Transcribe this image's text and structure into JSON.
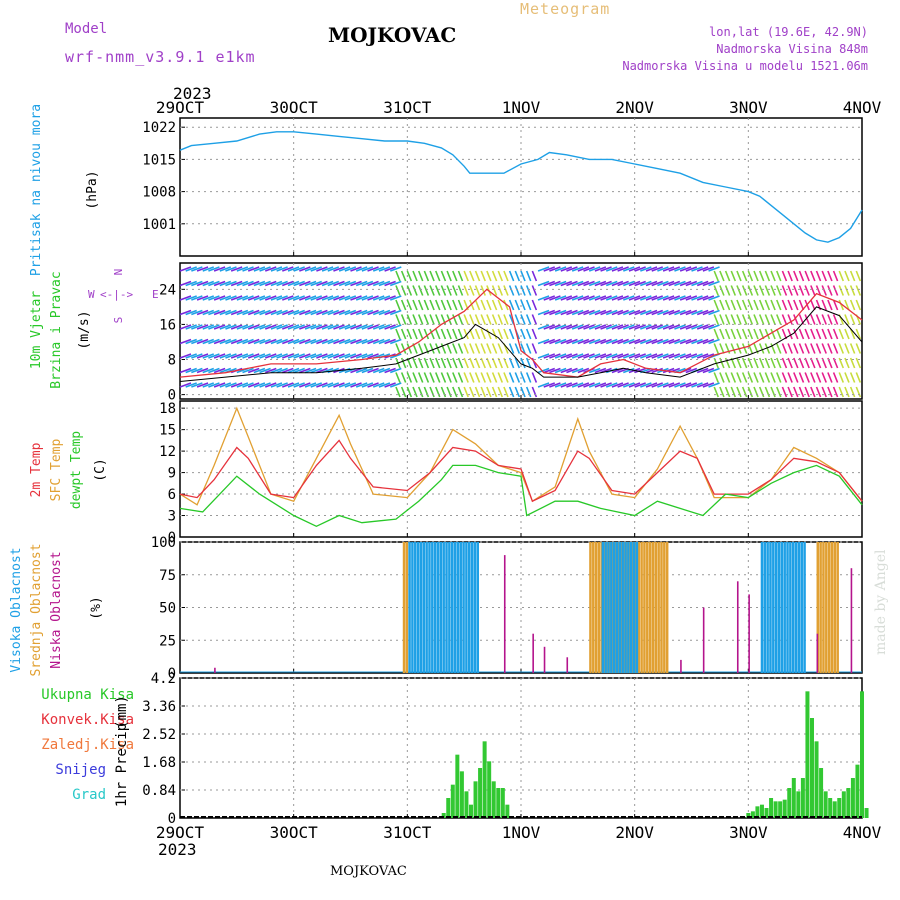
{
  "header": {
    "model_label": "Model",
    "model_name": "wrf-nmm_v3.9.1 e1km",
    "station": "MOJKOVAC",
    "product": "Meteogram",
    "lonlat": "lon,lat (19.6E, 42.9N)",
    "altitude": "Nadmorska Visina 848m",
    "model_altitude": "Nadmorska Visina u modelu 1521.06m",
    "year": "2023"
  },
  "footer": {
    "station": "MOJKOVAC",
    "year": "2023",
    "credit": "made by Angel"
  },
  "colors": {
    "pressure": "#1ea0e6",
    "wind_avg": "#000000",
    "wind_gust": "#e6323c",
    "t2m": "#e6323c",
    "sfc": "#e1a032",
    "dew": "#28c828",
    "cloud_high": "#1ea0e6",
    "cloud_mid": "#e1a032",
    "cloud_low": "#b4148c",
    "precip": "#32c832",
    "grid": "#888888"
  },
  "chart_data": [
    {
      "type": "line",
      "name": "pressure",
      "ylabel_main": "Pritisak na nivou mora",
      "ylabel_unit": "(hPa)",
      "yticks": [
        "1022",
        "1015",
        "1008",
        "1001"
      ],
      "ylim": [
        994,
        1024
      ],
      "x_days": [
        0,
        1,
        2,
        3,
        4,
        5,
        6
      ],
      "x_labels": [
        "29OCT",
        "30OCT",
        "31OCT",
        "1NOV",
        "2NOV",
        "3NOV",
        "4NOV"
      ],
      "points": [
        [
          0,
          1017
        ],
        [
          0.1,
          1018
        ],
        [
          0.3,
          1018.5
        ],
        [
          0.5,
          1019
        ],
        [
          0.7,
          1020.5
        ],
        [
          0.85,
          1021
        ],
        [
          1.0,
          1021
        ],
        [
          1.2,
          1020.5
        ],
        [
          1.4,
          1020
        ],
        [
          1.6,
          1019.5
        ],
        [
          1.8,
          1019
        ],
        [
          2.0,
          1019
        ],
        [
          2.15,
          1018.5
        ],
        [
          2.3,
          1017.5
        ],
        [
          2.4,
          1016
        ],
        [
          2.5,
          1013.5
        ],
        [
          2.55,
          1012
        ],
        [
          2.7,
          1012
        ],
        [
          2.85,
          1012
        ],
        [
          3.0,
          1014
        ],
        [
          3.15,
          1015
        ],
        [
          3.25,
          1016.5
        ],
        [
          3.4,
          1016
        ],
        [
          3.6,
          1015
        ],
        [
          3.8,
          1015
        ],
        [
          4.0,
          1014
        ],
        [
          4.2,
          1013
        ],
        [
          4.4,
          1012
        ],
        [
          4.6,
          1010
        ],
        [
          4.8,
          1009
        ],
        [
          5.0,
          1008
        ],
        [
          5.1,
          1007
        ],
        [
          5.2,
          1005
        ],
        [
          5.3,
          1003
        ],
        [
          5.4,
          1001
        ],
        [
          5.5,
          999
        ],
        [
          5.6,
          997.5
        ],
        [
          5.7,
          997
        ],
        [
          5.8,
          998
        ],
        [
          5.9,
          1000
        ],
        [
          6.0,
          1004
        ]
      ]
    },
    {
      "type": "line",
      "name": "wind",
      "ylabel_main": "10m Vjetar",
      "ylabel_sub": "Brzina i Pravac",
      "ylabel_unit": "(m/s)",
      "yticks": [
        "24",
        "16",
        "8",
        "0"
      ],
      "ylim": [
        -1,
        30
      ],
      "compass": {
        "north": "N",
        "west": "W",
        "south": "S",
        "east": "E",
        "arrows": "<-|->"
      },
      "series": [
        {
          "label": "average",
          "points": [
            [
              0,
              3
            ],
            [
              0.4,
              4
            ],
            [
              0.8,
              5
            ],
            [
              1.2,
              5
            ],
            [
              1.6,
              6
            ],
            [
              1.9,
              7
            ],
            [
              2.1,
              9
            ],
            [
              2.3,
              11
            ],
            [
              2.5,
              13
            ],
            [
              2.6,
              16
            ],
            [
              2.8,
              13
            ],
            [
              3.0,
              7
            ],
            [
              3.1,
              6
            ],
            [
              3.2,
              4
            ],
            [
              3.5,
              4
            ],
            [
              3.7,
              5
            ],
            [
              3.9,
              6
            ],
            [
              4.1,
              5
            ],
            [
              4.4,
              4
            ],
            [
              4.7,
              7
            ],
            [
              5.0,
              9
            ],
            [
              5.2,
              11
            ],
            [
              5.4,
              14
            ],
            [
              5.6,
              20
            ],
            [
              5.8,
              18
            ],
            [
              6.0,
              12
            ]
          ]
        },
        {
          "label": "gust",
          "points": [
            [
              0,
              4
            ],
            [
              0.4,
              5
            ],
            [
              0.8,
              7
            ],
            [
              1.2,
              7
            ],
            [
              1.6,
              8
            ],
            [
              1.9,
              9
            ],
            [
              2.1,
              12
            ],
            [
              2.3,
              16
            ],
            [
              2.5,
              19
            ],
            [
              2.7,
              24
            ],
            [
              2.9,
              20
            ],
            [
              3.0,
              10
            ],
            [
              3.1,
              8
            ],
            [
              3.2,
              5
            ],
            [
              3.5,
              4
            ],
            [
              3.7,
              7
            ],
            [
              3.9,
              8
            ],
            [
              4.1,
              6
            ],
            [
              4.4,
              5
            ],
            [
              4.7,
              9
            ],
            [
              5.0,
              11
            ],
            [
              5.2,
              14
            ],
            [
              5.4,
              17
            ],
            [
              5.6,
              23
            ],
            [
              5.8,
              21
            ],
            [
              6.0,
              17
            ]
          ]
        }
      ]
    },
    {
      "type": "line",
      "name": "temperature",
      "ylabel_t2m": "2m Temp",
      "ylabel_sfc": "SFC Temp",
      "ylabel_dew": "dewpt Temp",
      "ylabel_unit": "(C)",
      "yticks": [
        "18",
        "15",
        "12",
        "9",
        "6",
        "3",
        "0"
      ],
      "ylim": [
        0,
        19
      ],
      "series": [
        {
          "label": "2m Temp",
          "points": [
            [
              0,
              6
            ],
            [
              0.15,
              5.5
            ],
            [
              0.3,
              8
            ],
            [
              0.5,
              12.5
            ],
            [
              0.6,
              11
            ],
            [
              0.8,
              6
            ],
            [
              1.0,
              5.5
            ],
            [
              1.2,
              10
            ],
            [
              1.4,
              13.5
            ],
            [
              1.5,
              11
            ],
            [
              1.7,
              7
            ],
            [
              2.0,
              6.5
            ],
            [
              2.2,
              9
            ],
            [
              2.4,
              12.5
            ],
            [
              2.6,
              12
            ],
            [
              2.8,
              10
            ],
            [
              3.0,
              9.5
            ],
            [
              3.1,
              5
            ],
            [
              3.3,
              6.5
            ],
            [
              3.5,
              12
            ],
            [
              3.6,
              11
            ],
            [
              3.8,
              6.5
            ],
            [
              4.0,
              6
            ],
            [
              4.2,
              9
            ],
            [
              4.4,
              12
            ],
            [
              4.55,
              11
            ],
            [
              4.7,
              6
            ],
            [
              5.0,
              6
            ],
            [
              5.2,
              8
            ],
            [
              5.4,
              11
            ],
            [
              5.6,
              10.5
            ],
            [
              5.8,
              9
            ],
            [
              6.0,
              5
            ]
          ]
        },
        {
          "label": "SFC Temp",
          "points": [
            [
              0,
              6
            ],
            [
              0.15,
              4.5
            ],
            [
              0.3,
              10
            ],
            [
              0.5,
              18
            ],
            [
              0.6,
              14
            ],
            [
              0.8,
              6
            ],
            [
              1.0,
              5
            ],
            [
              1.2,
              11
            ],
            [
              1.4,
              17
            ],
            [
              1.5,
              13
            ],
            [
              1.7,
              6
            ],
            [
              2.0,
              5.5
            ],
            [
              2.2,
              9
            ],
            [
              2.4,
              15
            ],
            [
              2.6,
              13
            ],
            [
              2.8,
              10
            ],
            [
              3.0,
              9
            ],
            [
              3.1,
              5
            ],
            [
              3.3,
              7
            ],
            [
              3.5,
              16.5
            ],
            [
              3.6,
              12
            ],
            [
              3.8,
              6
            ],
            [
              4.0,
              5.5
            ],
            [
              4.2,
              9.5
            ],
            [
              4.4,
              15.5
            ],
            [
              4.55,
              11
            ],
            [
              4.7,
              5.5
            ],
            [
              5.0,
              5.5
            ],
            [
              5.2,
              8
            ],
            [
              5.4,
              12.5
            ],
            [
              5.6,
              11
            ],
            [
              5.8,
              9
            ],
            [
              6.0,
              5
            ]
          ]
        },
        {
          "label": "dewpt Temp",
          "points": [
            [
              0,
              4
            ],
            [
              0.2,
              3.5
            ],
            [
              0.35,
              6
            ],
            [
              0.5,
              8.5
            ],
            [
              0.7,
              6
            ],
            [
              1.0,
              3
            ],
            [
              1.2,
              1.5
            ],
            [
              1.4,
              3
            ],
            [
              1.6,
              2
            ],
            [
              1.9,
              2.5
            ],
            [
              2.1,
              5
            ],
            [
              2.3,
              8
            ],
            [
              2.4,
              10
            ],
            [
              2.6,
              10
            ],
            [
              2.8,
              9
            ],
            [
              3.0,
              8.5
            ],
            [
              3.05,
              3
            ],
            [
              3.3,
              5
            ],
            [
              3.5,
              5
            ],
            [
              3.7,
              4
            ],
            [
              4.0,
              3
            ],
            [
              4.2,
              5
            ],
            [
              4.4,
              4
            ],
            [
              4.6,
              3
            ],
            [
              4.8,
              6
            ],
            [
              5.0,
              5.5
            ],
            [
              5.2,
              7.5
            ],
            [
              5.4,
              9
            ],
            [
              5.6,
              10
            ],
            [
              5.8,
              8.5
            ],
            [
              6.0,
              4.5
            ]
          ]
        }
      ]
    },
    {
      "type": "bar",
      "name": "clouds",
      "ylabel_high": "Visoka Oblacnost",
      "ylabel_mid": "Srednja Oblacnost",
      "ylabel_low": "Niska Oblacnost",
      "ylabel_unit": "(%)",
      "yticks": [
        "100",
        "75",
        "50",
        "25",
        "0"
      ],
      "ylim": [
        0,
        100
      ],
      "series": [
        {
          "label": "Visoka Oblacnost",
          "x_from": [
            2.0,
            3.7,
            5.1
          ],
          "x_to": [
            2.6,
            4.0,
            5.5
          ],
          "value": 100
        },
        {
          "label": "Srednja Oblacnost",
          "x_from": [
            1.96,
            3.6,
            5.6
          ],
          "x_to": [
            2.0,
            4.3,
            5.8
          ],
          "value": 100
        },
        {
          "label": "Niska Oblacnost",
          "bars": [
            [
              0.3,
              4
            ],
            [
              2.85,
              90
            ],
            [
              3.1,
              30
            ],
            [
              3.2,
              20
            ],
            [
              3.4,
              12
            ],
            [
              4.4,
              10
            ],
            [
              4.6,
              50
            ],
            [
              4.9,
              70
            ],
            [
              5.0,
              60
            ],
            [
              5.6,
              30
            ],
            [
              5.9,
              80
            ]
          ]
        }
      ]
    },
    {
      "type": "bar",
      "name": "precipitation",
      "ylabel_main": "1hr Precip",
      "ylabel_unit": "(mm)",
      "legend": [
        "Ukupna Kisa",
        "Konvek.Kisa",
        "Zaledj.Kisa",
        "Snijeg",
        "Grad"
      ],
      "yticks": [
        "4.2",
        "3.36",
        "2.52",
        "1.68",
        "0.84",
        "0"
      ],
      "ylim": [
        0,
        4.2
      ],
      "bars": [
        [
          2.32,
          0.15
        ],
        [
          2.36,
          0.6
        ],
        [
          2.4,
          1.0
        ],
        [
          2.44,
          1.9
        ],
        [
          2.48,
          1.4
        ],
        [
          2.52,
          0.8
        ],
        [
          2.56,
          0.4
        ],
        [
          2.6,
          1.1
        ],
        [
          2.64,
          1.5
        ],
        [
          2.68,
          2.3
        ],
        [
          2.72,
          1.7
        ],
        [
          2.76,
          1.1
        ],
        [
          2.8,
          0.9
        ],
        [
          2.84,
          0.9
        ],
        [
          2.88,
          0.4
        ],
        [
          5.0,
          0.15
        ],
        [
          5.04,
          0.2
        ],
        [
          5.08,
          0.35
        ],
        [
          5.12,
          0.4
        ],
        [
          5.16,
          0.3
        ],
        [
          5.2,
          0.6
        ],
        [
          5.24,
          0.5
        ],
        [
          5.28,
          0.5
        ],
        [
          5.32,
          0.55
        ],
        [
          5.36,
          0.9
        ],
        [
          5.4,
          1.2
        ],
        [
          5.44,
          0.8
        ],
        [
          5.48,
          1.2
        ],
        [
          5.52,
          3.8
        ],
        [
          5.56,
          3.0
        ],
        [
          5.6,
          2.3
        ],
        [
          5.64,
          1.5
        ],
        [
          5.68,
          0.8
        ],
        [
          5.72,
          0.6
        ],
        [
          5.76,
          0.5
        ],
        [
          5.8,
          0.6
        ],
        [
          5.84,
          0.8
        ],
        [
          5.88,
          0.9
        ],
        [
          5.92,
          1.2
        ],
        [
          5.96,
          1.6
        ],
        [
          6.0,
          3.8
        ],
        [
          6.04,
          0.3
        ]
      ]
    }
  ]
}
